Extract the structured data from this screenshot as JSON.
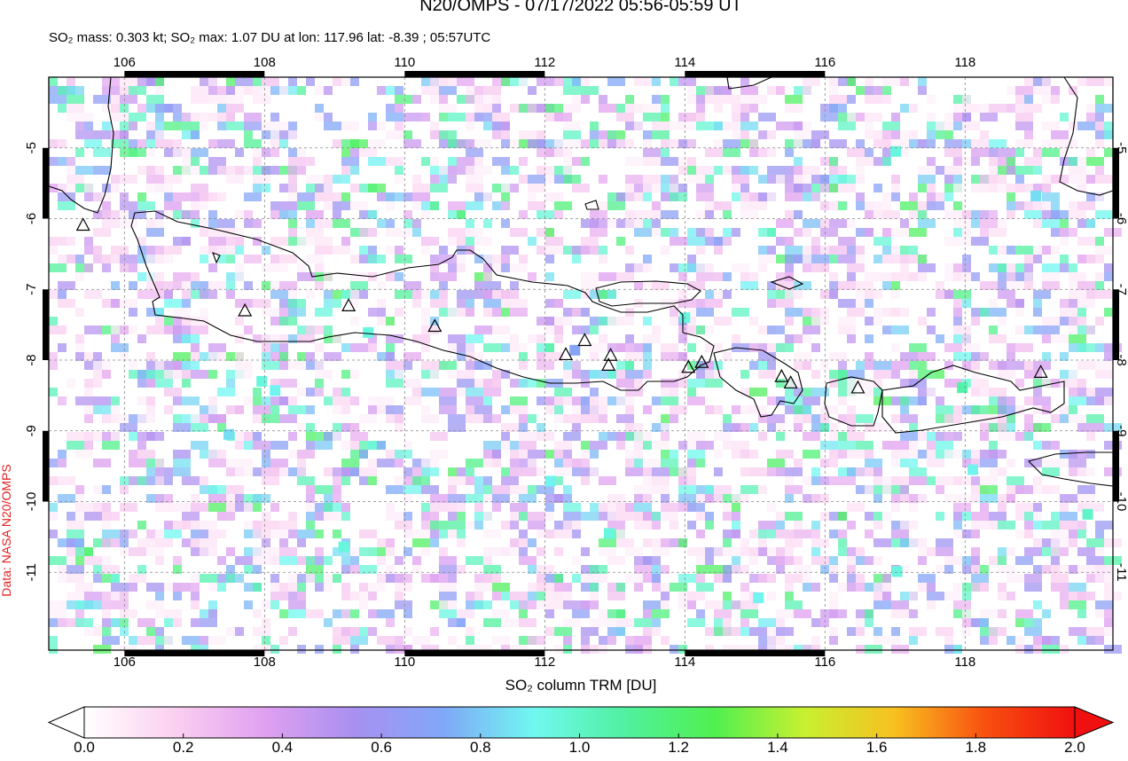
{
  "title": "N20/OMPS - 07/17/2022 05:56-05:59 UT",
  "subtitle": "SO₂ mass: 0.303 kt; SO₂ max: 1.07 DU at lon: 117.96 lat: -8.39 ; 05:57UTC",
  "source": "Data: NASA N20/OMPS",
  "map": {
    "lon_range": [
      104.92,
      120.11
    ],
    "lat_range": [
      -4.0,
      -12.1
    ],
    "lon_ticks": [
      106,
      108,
      110,
      112,
      114,
      116,
      118
    ],
    "lat_ticks": [
      -5,
      -6,
      -7,
      -8,
      -9,
      -10,
      -11
    ],
    "grid": true
  },
  "volcanoes": {
    "lon": [
      105.41,
      107.72,
      109.2,
      110.43,
      112.3,
      112.57,
      112.94,
      112.91,
      114.05,
      114.24,
      115.38,
      115.51,
      116.47,
      119.08
    ],
    "lat": [
      -6.1,
      -7.31,
      -7.24,
      -7.53,
      -7.93,
      -7.73,
      -7.94,
      -8.08,
      -8.11,
      -8.04,
      -8.24,
      -8.33,
      -8.4,
      -8.18
    ]
  },
  "so2_pixels": {
    "lon": [
      117.96,
      117.01,
      119.01,
      119.75,
      108.15,
      107.96,
      114.0,
      109.48,
      109.13,
      112.92,
      118.11,
      115.05,
      117.03,
      107.49,
      112.43,
      112.08
    ],
    "lat": [
      -8.39,
      -5.05,
      -5.68,
      -10.18,
      -8.43,
      -8.3,
      -7.4,
      -7.61,
      -10.64,
      -10.45,
      -9.55,
      -11.36,
      -10.99,
      -9.05,
      -7.86,
      -9.71
    ],
    "values": [
      1.07,
      0.95,
      0.85,
      1.0,
      0.9,
      0.95,
      0.95,
      0.95,
      0.95,
      0.95,
      0.9,
      0.9,
      0.95,
      0.85,
      0.7,
      0.9
    ]
  },
  "colorbar": {
    "label": "SO₂ column TRM [DU]",
    "range": [
      0,
      2
    ],
    "ticks": [
      {
        "value": 0,
        "label": "0.0"
      },
      {
        "value": 0.2,
        "label": "0.2"
      },
      {
        "value": 0.4,
        "label": "0.4"
      },
      {
        "value": 0.6,
        "label": "0.6"
      },
      {
        "value": 0.8,
        "label": "0.8"
      },
      {
        "value": 1.0,
        "label": "1.0"
      },
      {
        "value": 1.2,
        "label": "1.2"
      },
      {
        "value": 1.4,
        "label": "1.4"
      },
      {
        "value": 1.6,
        "label": "1.6"
      },
      {
        "value": 1.8,
        "label": "1.8"
      },
      {
        "value": 2.0,
        "label": "2.0"
      }
    ],
    "colors": [
      "#ffffff",
      "#fbd0f0",
      "#e0a0f0",
      "#a890f0",
      "#80a8f8",
      "#70f8f0",
      "#50f0a0",
      "#50f050",
      "#c8f030",
      "#f8c020",
      "#f85010",
      "#f01010"
    ]
  }
}
